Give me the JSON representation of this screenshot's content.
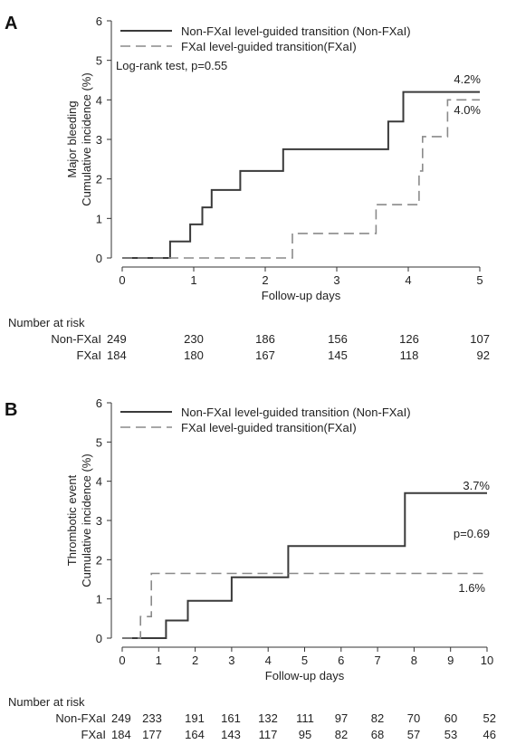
{
  "chart_data": [
    {
      "panel": "A",
      "type": "line",
      "step": true,
      "xlabel": "Follow-up days",
      "ylabel_lines": [
        "Major bleeding",
        "Cumulative incidence (%)"
      ],
      "xlim": [
        0,
        5
      ],
      "ylim": [
        0,
        6
      ],
      "xticks": [
        0,
        1,
        2,
        3,
        4,
        5
      ],
      "yticks": [
        0,
        1,
        2,
        3,
        4,
        5,
        6
      ],
      "legend_position": "top-left",
      "series": [
        {
          "name": "Non-FXaI level-guided transition (Non-FXaI)",
          "style": "solid",
          "color": "#3a3a3a",
          "x": [
            0,
            0.67,
            0.95,
            1.12,
            1.25,
            1.65,
            2.25,
            3.72,
            3.93,
            5.0
          ],
          "y": [
            0,
            0.42,
            0.85,
            1.28,
            1.72,
            2.2,
            2.75,
            3.45,
            4.2,
            4.2
          ]
        },
        {
          "name": "FXaI level-guided transition(FXaI)",
          "style": "dashed",
          "color": "#8a8a8a",
          "x": [
            0,
            2.38,
            3.55,
            4.15,
            4.2,
            4.55,
            5.0
          ],
          "y": [
            0,
            0.62,
            1.35,
            2.2,
            3.07,
            4.0,
            4.0
          ]
        }
      ],
      "annotations": [
        "Log-rank test, p=0.55",
        "4.2%",
        "4.0%"
      ],
      "risk_table": {
        "header": "Number at risk",
        "times": [
          0,
          1,
          2,
          3,
          4,
          5
        ],
        "rows": [
          {
            "label": "Non-FXaI",
            "values": [
              "249",
              "230",
              "186",
              "156",
              "126",
              "107"
            ]
          },
          {
            "label": "FXaI",
            "values": [
              "184",
              "180",
              "167",
              "145",
              "118",
              "92"
            ]
          }
        ]
      }
    },
    {
      "panel": "B",
      "type": "line",
      "step": true,
      "xlabel": "Follow-up days",
      "ylabel_lines": [
        "Thrombotic event",
        "Cumulative incidence (%)"
      ],
      "xlim": [
        0,
        10
      ],
      "ylim": [
        0,
        6
      ],
      "xticks": [
        0,
        1,
        2,
        3,
        4,
        5,
        6,
        7,
        8,
        9,
        10
      ],
      "yticks": [
        0,
        1,
        2,
        3,
        4,
        5,
        6
      ],
      "legend_position": "top-left",
      "series": [
        {
          "name": "Non-FXaI level-guided transition (Non-FXaI)",
          "style": "solid",
          "color": "#3a3a3a",
          "x": [
            0,
            1.2,
            1.8,
            3.0,
            4.55,
            7.75,
            10.0
          ],
          "y": [
            0,
            0.45,
            0.95,
            1.55,
            2.35,
            3.7,
            3.7
          ]
        },
        {
          "name": "FXaI level-guided transition(FXaI)",
          "style": "dashed",
          "color": "#8a8a8a",
          "x": [
            0,
            0.5,
            0.8,
            10.0
          ],
          "y": [
            0,
            0.55,
            1.65,
            1.65
          ]
        }
      ],
      "annotations": [
        "3.7%",
        "p=0.69",
        "1.6%"
      ],
      "risk_table": {
        "header": "Number at risk",
        "times": [
          0,
          1,
          2,
          3,
          4,
          5,
          6,
          7,
          8,
          9,
          10
        ],
        "rows": [
          {
            "label": "Non-FXaI",
            "values": [
              "249",
              "233",
              "191",
              "161",
              "132",
              "111",
              "97",
              "82",
              "70",
              "60",
              "52"
            ]
          },
          {
            "label": "FXaI",
            "values": [
              "184",
              "177",
              "164",
              "143",
              "117",
              "95",
              "82",
              "68",
              "57",
              "53",
              "46"
            ]
          }
        ]
      }
    }
  ]
}
